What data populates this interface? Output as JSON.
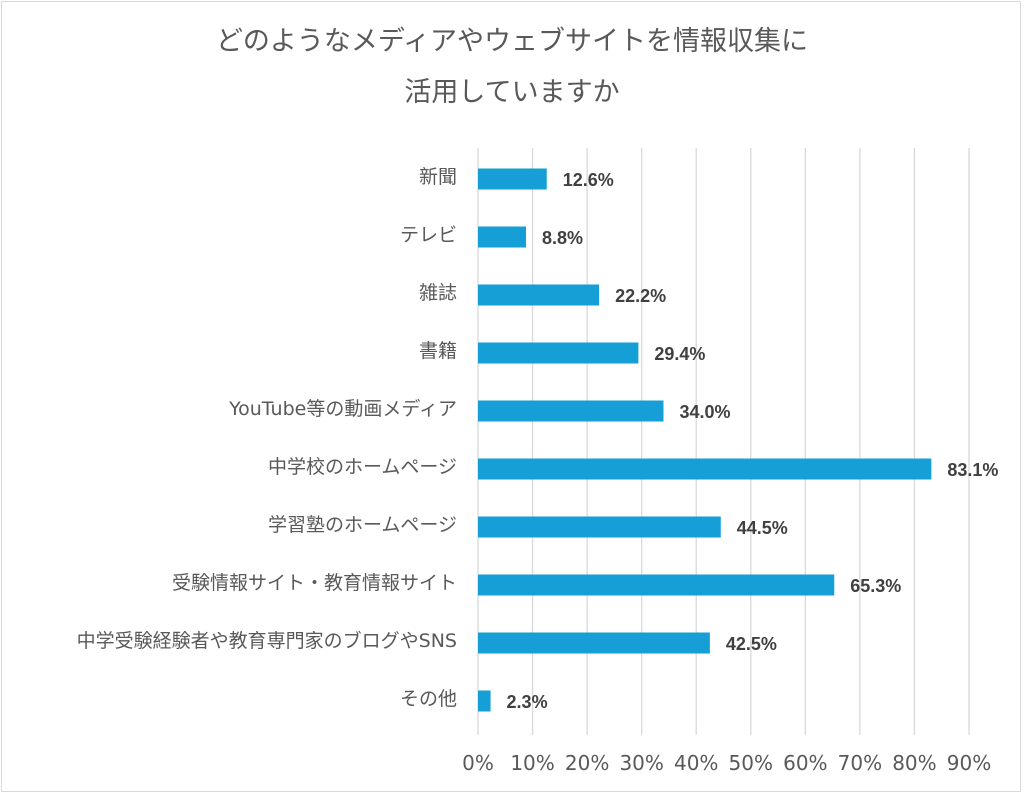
{
  "chart_data": {
    "type": "bar",
    "orientation": "horizontal",
    "title_lines": [
      "どのようなメディアやウェブサイトを情報収集に",
      "活用していますか"
    ],
    "categories": [
      "新聞",
      "テレビ",
      "雑誌",
      "書籍",
      "YouTube等の動画メディア",
      "中学校のホームページ",
      "学習塾のホームページ",
      "受験情報サイト・教育情報サイト",
      "中学受験経験者や教育専門家のブログやSNS",
      "その他"
    ],
    "values": [
      12.6,
      8.8,
      22.2,
      29.4,
      34.0,
      83.1,
      44.5,
      65.3,
      42.5,
      2.3
    ],
    "value_labels": [
      "12.6%",
      "8.8%",
      "22.2%",
      "29.4%",
      "34.0%",
      "83.1%",
      "44.5%",
      "65.3%",
      "42.5%",
      "2.3%"
    ],
    "xlim": [
      0,
      90
    ],
    "x_ticks": [
      "0%",
      "10%",
      "20%",
      "30%",
      "40%",
      "50%",
      "60%",
      "70%",
      "80%",
      "90%"
    ],
    "grid": "vertical",
    "bar_color": "#169fd6",
    "gridline_color": "#d9d9d9",
    "legend": "none"
  }
}
